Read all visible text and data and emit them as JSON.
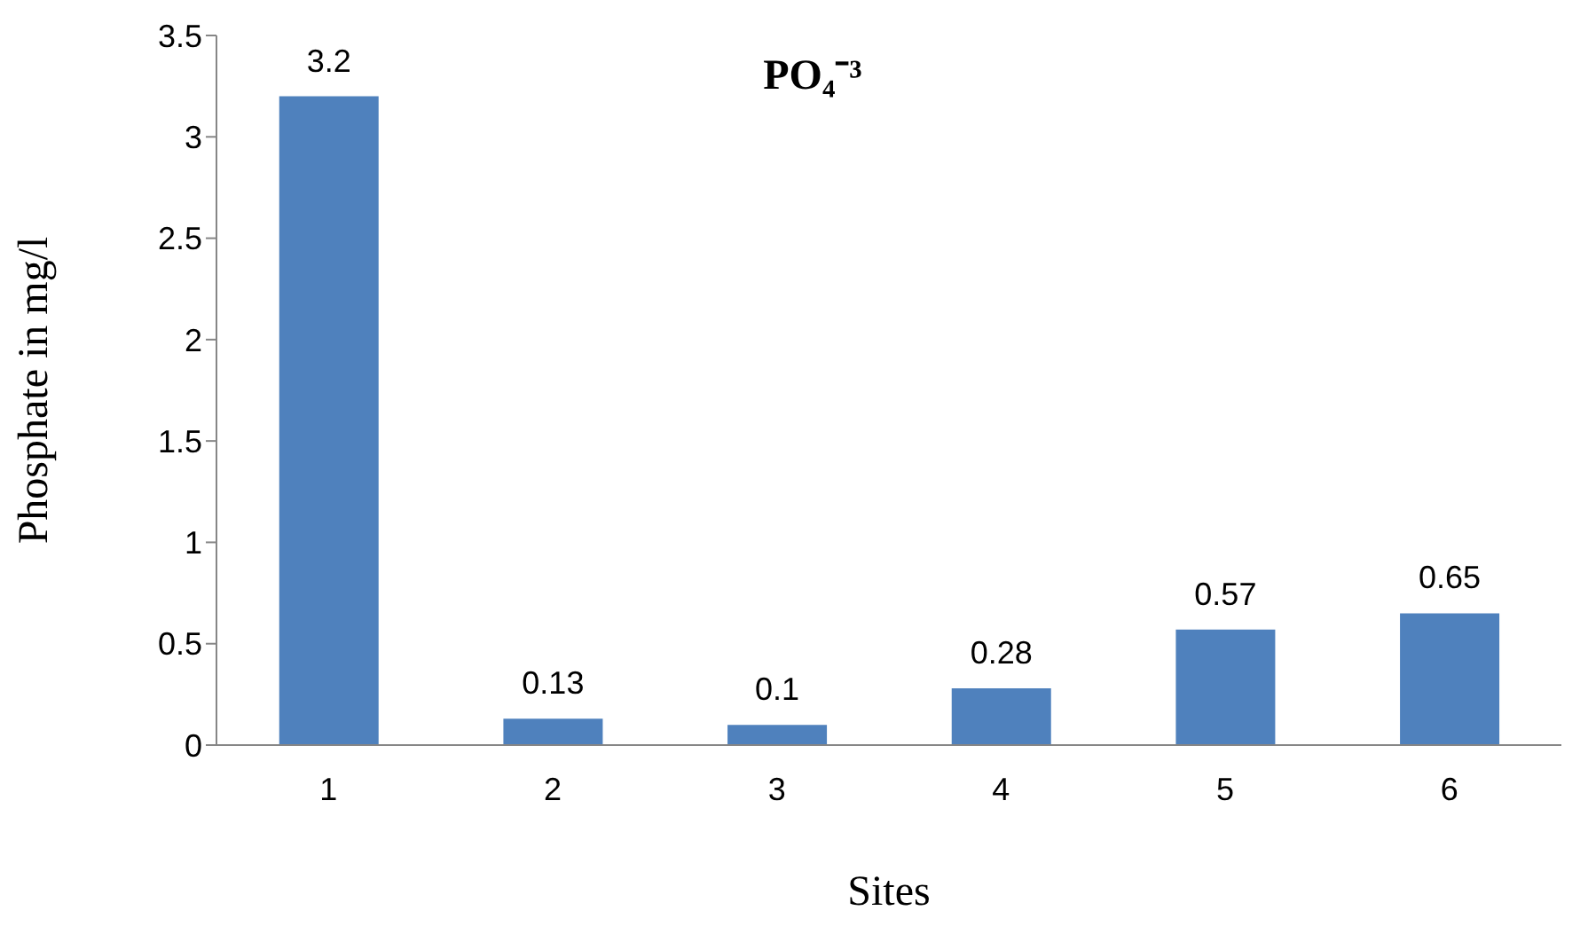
{
  "chart_data": {
    "type": "bar",
    "title": "PO₄⁻³",
    "xlabel": "Sites",
    "ylabel": "Phosphate in mg/l",
    "categories": [
      "1",
      "2",
      "3",
      "4",
      "5",
      "6"
    ],
    "values": [
      3.2,
      0.13,
      0.1,
      0.28,
      0.57,
      0.65
    ],
    "color": "#4f81bd",
    "ylim": [
      0,
      3.5
    ],
    "yticks": [
      0,
      0.5,
      1,
      1.5,
      2,
      2.5,
      3,
      3.5
    ],
    "grid": false,
    "data_labels": true
  }
}
